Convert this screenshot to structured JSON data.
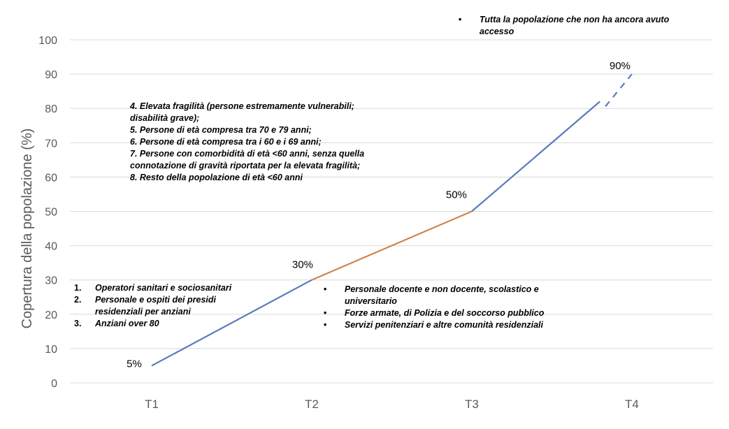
{
  "chart_data": {
    "type": "line",
    "categories": [
      "T1",
      "T2",
      "T3",
      "T4"
    ],
    "x": [
      "T1",
      "T2",
      "T3",
      "T4"
    ],
    "values": [
      5,
      30,
      50,
      90
    ],
    "data_labels": [
      "5%",
      "30%",
      "50%",
      "90%"
    ],
    "segments": [
      {
        "from": 0,
        "to": 1,
        "color": "#5b7bbd",
        "dash": "solid"
      },
      {
        "from": 1,
        "to": 2,
        "color": "#d2834c",
        "dash": "solid"
      },
      {
        "from": 2,
        "to": 3,
        "color": "#5b7bbd",
        "dash": "solid-then-dashed"
      }
    ],
    "title": "",
    "xlabel": "",
    "ylabel": "Copertura della popolazione (%)",
    "ylim": [
      0,
      100
    ],
    "yticks": [
      0,
      10,
      20,
      30,
      40,
      50,
      60,
      70,
      80,
      90,
      100
    ],
    "grid": true,
    "legend": "none",
    "colors": {
      "blue": "#5b7bbd",
      "orange": "#d2834c",
      "grid": "#d9d9d9",
      "axis_text": "#595959"
    },
    "annotations": {
      "t1": {
        "marker_style": "numbered",
        "items": [
          {
            "marker": "1.",
            "text": "Operatori sanitari e sociosanitari"
          },
          {
            "marker": "2.",
            "text": "Personale e ospiti dei presidi residenziali per anziani"
          },
          {
            "marker": "3.",
            "text": "Anziani over 80"
          }
        ]
      },
      "t2": {
        "marker_style": "bullet",
        "items": [
          {
            "marker": "•",
            "text": "Personale docente e non docente, scolastico e universitario"
          },
          {
            "marker": "•",
            "text": "Forze armate, di Polizia e del soccorso pubblico"
          },
          {
            "marker": "•",
            "text": "Servizi penitenziari e altre comunità residenziali"
          }
        ]
      },
      "t3": {
        "marker_style": "numbered-inline",
        "items": [
          {
            "text": "4. Elevata fragilità (persone estremamente vulnerabili; disabilità grave);"
          },
          {
            "text": "5. Persone di età compresa tra 70 e 79 anni;"
          },
          {
            "text": "6. Persone di età compresa tra i 60 e i 69 anni;"
          },
          {
            "text": "7. Persone con comorbidità di età <60 anni, senza quella connotazione di gravità riportata per la elevata fragilità;"
          },
          {
            "text": "8. Resto della popolazione di età <60 anni"
          }
        ]
      },
      "t4": {
        "marker_style": "bullet",
        "items": [
          {
            "marker": "•",
            "text": "Tutta la popolazione che non ha ancora avuto accesso"
          }
        ]
      }
    }
  }
}
